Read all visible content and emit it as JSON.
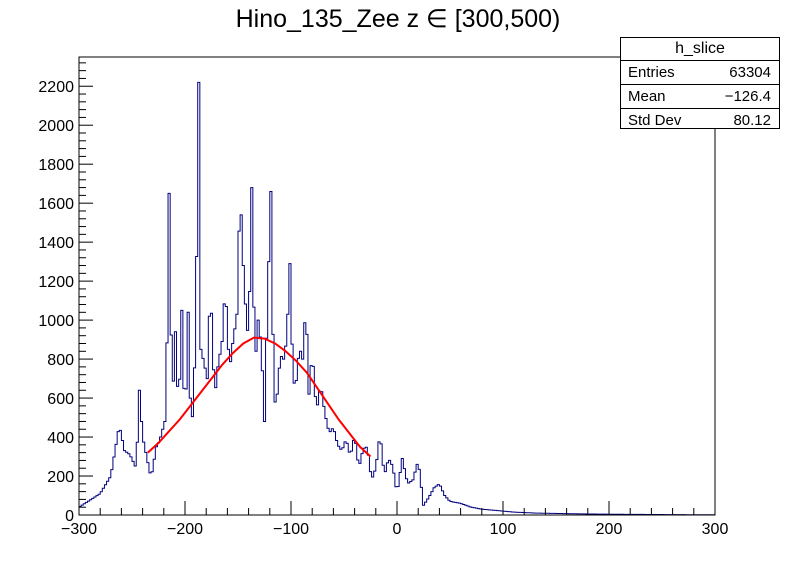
{
  "chart_data": {
    "type": "histogram",
    "title": "Hino_135_Zee z  ∈ [300,500)",
    "xlabel": "",
    "ylabel": "",
    "xlim": [
      -300,
      300
    ],
    "ylim": [
      0,
      2350
    ],
    "x_ticks": [
      -300,
      -200,
      -100,
      0,
      100,
      200,
      300
    ],
    "x_tick_labels": [
      "−300",
      "−200",
      "−100",
      "0",
      "100",
      "200",
      "300"
    ],
    "y_ticks": [
      0,
      200,
      400,
      600,
      800,
      1000,
      1200,
      1400,
      1600,
      1800,
      2000,
      2200
    ],
    "y_tick_labels": [
      "0",
      "200",
      "400",
      "600",
      "800",
      "1000",
      "1200",
      "1400",
      "1600",
      "1800",
      "2000",
      "2200"
    ],
    "series": [
      {
        "name": "h_slice",
        "color": "#00007f",
        "x": [
          -300,
          -280,
          -270,
          -262,
          -257,
          -252,
          -246,
          -243,
          -240,
          -232,
          -227,
          -224,
          -218,
          -215,
          -212,
          -209,
          -206,
          -203,
          -200,
          -197,
          -194,
          -190,
          -187,
          -185,
          -182,
          -179,
          -176,
          -172,
          -169,
          -165,
          -162,
          -158,
          -155,
          -151,
          -148,
          -144,
          -140,
          -137,
          -134,
          -131,
          -128,
          -125,
          -122,
          -119,
          -116,
          -113,
          -110,
          -107,
          -104,
          -101,
          -98,
          -95,
          -92,
          -89,
          -86,
          -83,
          -80,
          -76,
          -72,
          -68,
          -64,
          -60,
          -56,
          -52,
          -48,
          -44,
          -40,
          -36,
          -32,
          -28,
          -24,
          -20,
          -16,
          -12,
          -8,
          -4,
          0,
          5,
          10,
          15,
          20,
          25,
          30,
          35,
          40,
          45,
          50,
          60,
          70,
          80,
          90,
          100,
          110,
          130,
          150,
          170,
          200,
          230,
          260,
          290
        ],
        "values": [
          40,
          110,
          200,
          460,
          330,
          310,
          240,
          640,
          400,
          190,
          350,
          380,
          500,
          1650,
          560,
          940,
          520,
          1050,
          450,
          1040,
          380,
          880,
          2220,
          850,
          780,
          700,
          1180,
          600,
          760,
          890,
          1180,
          740,
          880,
          1030,
          1670,
          1150,
          880,
          1680,
          760,
          1000,
          870,
          480,
          1120,
          1660,
          560,
          620,
          820,
          800,
          900,
          1290,
          670,
          690,
          860,
          800,
          1080,
          620,
          840,
          530,
          670,
          520,
          420,
          450,
          360,
          330,
          390,
          300,
          410,
          240,
          340,
          350,
          180,
          240,
          420,
          200,
          290,
          250,
          110,
          290,
          160,
          180,
          280,
          50,
          90,
          140,
          160,
          100,
          70,
          60,
          40,
          30,
          25,
          20,
          15,
          10,
          8,
          6,
          4,
          3,
          2,
          1
        ],
        "step": 2
      },
      {
        "name": "gaussian-fit",
        "type": "line",
        "color": "#ff0000",
        "x": [
          -235,
          -225,
          -215,
          -205,
          -195,
          -185,
          -175,
          -165,
          -155,
          -145,
          -135,
          -125,
          -115,
          -105,
          -95,
          -85,
          -75,
          -65,
          -55,
          -45,
          -35,
          -25
        ],
        "values": [
          320,
          370,
          430,
          490,
          560,
          630,
          700,
          770,
          830,
          880,
          910,
          905,
          880,
          840,
          790,
          730,
          650,
          570,
          490,
          420,
          350,
          300
        ]
      }
    ],
    "stats": {
      "name": "h_slice",
      "rows": [
        {
          "label": "Entries",
          "value": "63304"
        },
        {
          "label": "Mean",
          "value": "−126.4"
        },
        {
          "label": "Std Dev",
          "value": "80.12"
        }
      ]
    }
  }
}
